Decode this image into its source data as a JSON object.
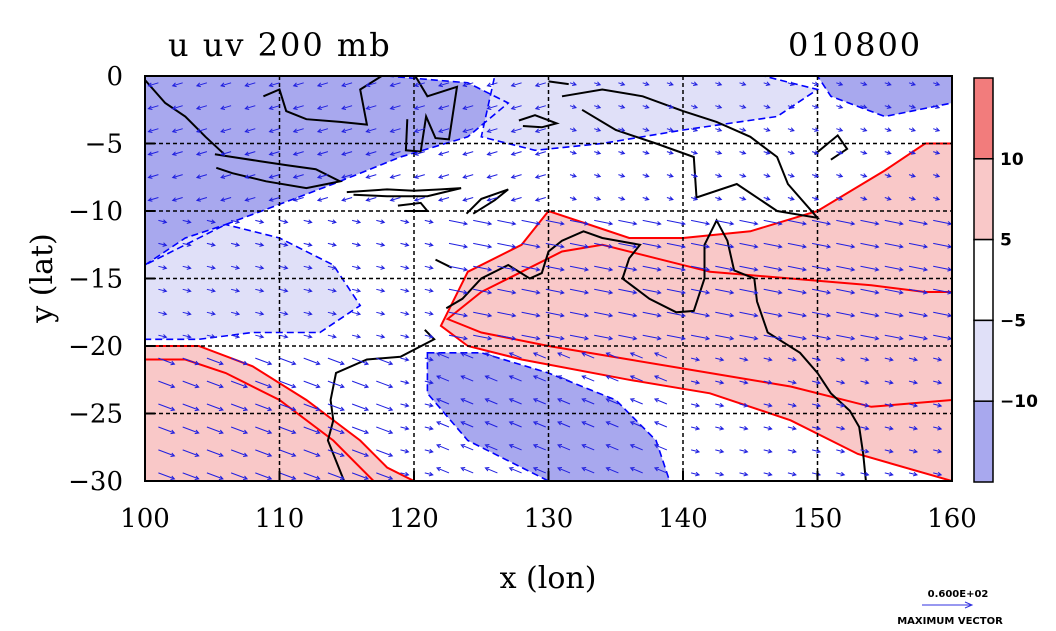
{
  "chart_data": {
    "type": "heatmap",
    "title": "u uv 200 mb",
    "title_right": "010800",
    "xlabel": "x (lon)",
    "ylabel": "y (lat)",
    "xlim": [
      100,
      160
    ],
    "ylim": [
      -30,
      0
    ],
    "x_ticks": [
      100,
      110,
      120,
      130,
      140,
      150,
      160
    ],
    "y_ticks": [
      0,
      -5,
      -10,
      -15,
      -20,
      -25,
      -30
    ],
    "grid": true,
    "colorbar": {
      "labels": [
        "10",
        "5",
        "−5",
        "−10"
      ],
      "levels": [
        {
          "range": ">10",
          "color": "#f27c7c"
        },
        {
          "range": "5 to 10",
          "color": "#f9c8c8"
        },
        {
          "range": "-5 to 5",
          "color": "#ffffff"
        },
        {
          "range": "-10 to -5",
          "color": "#e0e0f8"
        },
        {
          "range": "<-10",
          "color": "#a8a8ee"
        }
      ]
    },
    "contour_colors": {
      "positive": "#ff0000",
      "negative": "#0000ff"
    },
    "vector_color": "#2020e0",
    "reference_vector": {
      "value": "0.600E+02",
      "label": "MAXIMUM VECTOR"
    },
    "regions": [
      {
        "level": ">10",
        "polygon": [
          [
            122.5,
            -18
          ],
          [
            125,
            -16
          ],
          [
            128,
            -14.5
          ],
          [
            131,
            -13
          ],
          [
            134,
            -12.5
          ],
          [
            138,
            -13.5
          ],
          [
            142,
            -14.5
          ],
          [
            148,
            -15
          ],
          [
            154,
            -15.5
          ],
          [
            158,
            -16
          ],
          [
            160,
            -16
          ],
          [
            160,
            -24
          ],
          [
            154,
            -24.5
          ],
          [
            148,
            -23
          ],
          [
            142,
            -22
          ],
          [
            136,
            -21
          ],
          [
            130,
            -20
          ],
          [
            125,
            -19
          ]
        ]
      },
      {
        "level": "5 to 10",
        "polygon": [
          [
            122,
            -18.5
          ],
          [
            124,
            -14.5
          ],
          [
            128,
            -12.5
          ],
          [
            130,
            -10
          ],
          [
            133,
            -11
          ],
          [
            136,
            -12
          ],
          [
            140,
            -12
          ],
          [
            145,
            -11.5
          ],
          [
            150,
            -10
          ],
          [
            155,
            -7
          ],
          [
            158,
            -5
          ],
          [
            160,
            -5
          ],
          [
            160,
            -30
          ],
          [
            153,
            -28
          ],
          [
            148,
            -25.5
          ],
          [
            142,
            -23.5
          ],
          [
            136,
            -22.5
          ],
          [
            128,
            -21
          ],
          [
            124,
            -20
          ]
        ]
      },
      {
        "level": ">10",
        "polygon": [
          [
            100,
            -21
          ],
          [
            103,
            -21
          ],
          [
            106,
            -22
          ],
          [
            110,
            -24
          ],
          [
            114,
            -27
          ],
          [
            117,
            -30
          ],
          [
            100,
            -30
          ]
        ]
      },
      {
        "level": "5 to 10",
        "polygon": [
          [
            100,
            -20
          ],
          [
            104,
            -20
          ],
          [
            108,
            -21.5
          ],
          [
            112,
            -24
          ],
          [
            116,
            -27
          ],
          [
            118,
            -29
          ],
          [
            120,
            -30
          ],
          [
            100,
            -30
          ]
        ]
      },
      {
        "level": "<-10",
        "polygon": [
          [
            100,
            0
          ],
          [
            110,
            0
          ],
          [
            118,
            0
          ],
          [
            124,
            -0.5
          ],
          [
            127,
            -2
          ],
          [
            124,
            -4.5
          ],
          [
            119,
            -6
          ],
          [
            114,
            -8
          ],
          [
            110,
            -9.5
          ],
          [
            106,
            -11
          ],
          [
            103,
            -12.5
          ],
          [
            100,
            -14
          ]
        ]
      },
      {
        "level": "-10 to -5",
        "polygon": [
          [
            100,
            -14
          ],
          [
            103,
            -12
          ],
          [
            106,
            -11
          ],
          [
            110,
            -12
          ],
          [
            114,
            -14
          ],
          [
            116,
            -17
          ],
          [
            113,
            -19
          ],
          [
            108,
            -19
          ],
          [
            104,
            -19.5
          ],
          [
            100,
            -19.5
          ]
        ]
      },
      {
        "level": "<-10",
        "polygon": [
          [
            121,
            -20.5
          ],
          [
            125,
            -20.5
          ],
          [
            130,
            -22
          ],
          [
            135,
            -24
          ],
          [
            138,
            -27
          ],
          [
            139,
            -30
          ],
          [
            130,
            -30
          ],
          [
            124,
            -27
          ],
          [
            121,
            -23.5
          ]
        ]
      },
      {
        "level": "-10 to -5",
        "polygon": [
          [
            126,
            0
          ],
          [
            136,
            0
          ],
          [
            146,
            0
          ],
          [
            150,
            -1
          ],
          [
            147,
            -3
          ],
          [
            140,
            -4
          ],
          [
            134,
            -5
          ],
          [
            129,
            -5.5
          ],
          [
            125,
            -4.5
          ]
        ]
      },
      {
        "level": "<-10",
        "polygon": [
          [
            150,
            0
          ],
          [
            160,
            0
          ],
          [
            160,
            -2
          ],
          [
            155,
            -3
          ],
          [
            151,
            -1.5
          ]
        ]
      }
    ],
    "coastlines": [
      [
        [
          120.8,
          -18.8
        ],
        [
          121.5,
          -19.5
        ],
        [
          119,
          -20.8
        ],
        [
          116.5,
          -21
        ],
        [
          114.2,
          -22
        ],
        [
          113.8,
          -24
        ],
        [
          114,
          -25.5
        ],
        [
          113.6,
          -27
        ],
        [
          114.2,
          -28.5
        ],
        [
          114.8,
          -30
        ]
      ],
      [
        [
          122.4,
          -17.2
        ],
        [
          123.6,
          -16.5
        ],
        [
          125,
          -15
        ],
        [
          127,
          -14
        ],
        [
          128.6,
          -15
        ],
        [
          129.5,
          -14.6
        ],
        [
          130,
          -13
        ],
        [
          131,
          -12.2
        ],
        [
          132.6,
          -11.5
        ],
        [
          134,
          -12
        ],
        [
          135.7,
          -12.3
        ],
        [
          136.8,
          -12.5
        ],
        [
          136,
          -13.5
        ],
        [
          135.5,
          -15
        ],
        [
          137.5,
          -16.5
        ],
        [
          139.5,
          -17.5
        ],
        [
          140.8,
          -17.4
        ],
        [
          141.6,
          -15
        ],
        [
          141.6,
          -12.5
        ],
        [
          142.5,
          -10.7
        ],
        [
          143.3,
          -12.2
        ],
        [
          143.8,
          -14.4
        ],
        [
          145.3,
          -15
        ],
        [
          145.5,
          -16.7
        ],
        [
          146.3,
          -19
        ],
        [
          148.7,
          -20.5
        ],
        [
          150,
          -22
        ],
        [
          151,
          -23.5
        ],
        [
          152.4,
          -24.8
        ],
        [
          153.1,
          -26
        ],
        [
          153.4,
          -28
        ],
        [
          153.6,
          -30
        ]
      ],
      [
        [
          131,
          -1.5
        ],
        [
          134,
          -1
        ],
        [
          137,
          -1.5
        ],
        [
          140,
          -2.6
        ],
        [
          142.5,
          -3.4
        ],
        [
          145,
          -4.5
        ],
        [
          147,
          -6
        ],
        [
          147.8,
          -8
        ],
        [
          150,
          -10.5
        ],
        [
          147,
          -10
        ],
        [
          144,
          -8
        ],
        [
          141,
          -9
        ],
        [
          140.8,
          -6
        ],
        [
          138,
          -5
        ],
        [
          135,
          -4
        ],
        [
          132.5,
          -2.5
        ]
      ],
      [
        [
          105.2,
          -5.8
        ],
        [
          106.5,
          -6
        ],
        [
          108.5,
          -6.3
        ],
        [
          110.5,
          -6.6
        ],
        [
          112.7,
          -6.9
        ],
        [
          114.5,
          -7.8
        ],
        [
          112,
          -8.3
        ],
        [
          109,
          -7.8
        ],
        [
          106.5,
          -7.2
        ],
        [
          105.3,
          -6.8
        ]
      ],
      [
        [
          100,
          -0.3
        ],
        [
          101.5,
          -2
        ],
        [
          103,
          -3
        ],
        [
          104.5,
          -4.5
        ],
        [
          105.9,
          -5.8
        ]
      ],
      [
        [
          108.8,
          -1.5
        ],
        [
          110,
          -1
        ],
        [
          110.5,
          -2.6
        ],
        [
          112,
          -3.2
        ],
        [
          114.5,
          -3.4
        ],
        [
          116.5,
          -3.6
        ],
        [
          116,
          -1
        ],
        [
          117.6,
          0
        ]
      ],
      [
        [
          119.5,
          -3.2
        ],
        [
          119.4,
          -5.5
        ],
        [
          120.5,
          -5.6
        ],
        [
          120.9,
          -3
        ],
        [
          121.6,
          -4.6
        ],
        [
          122.6,
          -4.7
        ],
        [
          123.2,
          -0.8
        ],
        [
          121,
          -1.5
        ],
        [
          120.1,
          0
        ]
      ],
      [
        [
          115,
          -8.6
        ],
        [
          118,
          -8.4
        ],
        [
          120,
          -8.5
        ],
        [
          122,
          -8.4
        ],
        [
          123.5,
          -8.3
        ],
        [
          121,
          -8.9
        ],
        [
          118,
          -8.9
        ],
        [
          115.5,
          -8.8
        ]
      ],
      [
        [
          118.8,
          -9.6
        ],
        [
          120.5,
          -9.4
        ],
        [
          121,
          -10
        ],
        [
          119.3,
          -10
        ]
      ],
      [
        [
          123.9,
          -10.2
        ],
        [
          125,
          -9.1
        ],
        [
          127,
          -8.4
        ],
        [
          126,
          -9.2
        ],
        [
          124.4,
          -10.2
        ]
      ],
      [
        [
          127.8,
          -3.3
        ],
        [
          129,
          -2.9
        ],
        [
          130.6,
          -3.5
        ],
        [
          129.5,
          -3.8
        ],
        [
          128.1,
          -3.7
        ]
      ],
      [
        [
          149.8,
          -5.8
        ],
        [
          151.5,
          -4.4
        ],
        [
          152.2,
          -5.4
        ],
        [
          151,
          -6.2
        ]
      ],
      [
        [
          130,
          -0.4
        ],
        [
          131.5,
          -0.6
        ]
      ],
      [
        [
          121.6,
          -13.6
        ],
        [
          122.8,
          -14.2
        ]
      ]
    ]
  }
}
